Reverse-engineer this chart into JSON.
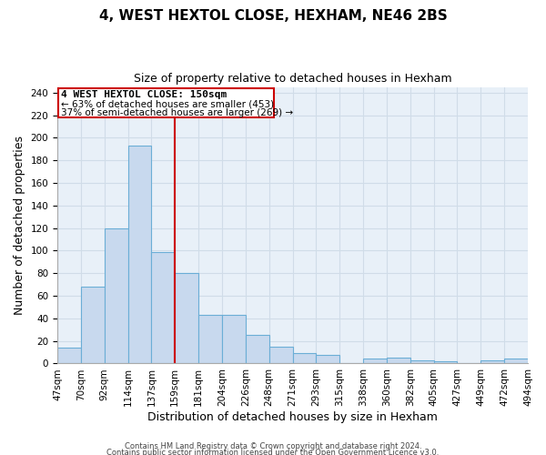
{
  "title": "4, WEST HEXTOL CLOSE, HEXHAM, NE46 2BS",
  "subtitle": "Size of property relative to detached houses in Hexham",
  "xlabel": "Distribution of detached houses by size in Hexham",
  "ylabel": "Number of detached properties",
  "bar_labels": [
    "47sqm",
    "70sqm",
    "92sqm",
    "114sqm",
    "137sqm",
    "159sqm",
    "181sqm",
    "204sqm",
    "226sqm",
    "248sqm",
    "271sqm",
    "293sqm",
    "315sqm",
    "338sqm",
    "360sqm",
    "382sqm",
    "405sqm",
    "427sqm",
    "449sqm",
    "472sqm",
    "494sqm"
  ],
  "bar_heights": [
    14,
    68,
    120,
    193,
    99,
    80,
    43,
    43,
    25,
    15,
    9,
    8,
    0,
    4,
    5,
    3,
    2,
    0,
    3,
    4
  ],
  "bar_color": "#c8d9ee",
  "bar_edge_color": "#6baed6",
  "vline_color": "#cc0000",
  "ylim": [
    0,
    245
  ],
  "yticks": [
    0,
    20,
    40,
    60,
    80,
    100,
    120,
    140,
    160,
    180,
    200,
    220,
    240
  ],
  "annotation_title": "4 WEST HEXTOL CLOSE: 150sqm",
  "annotation_line1": "← 63% of detached houses are smaller (453)",
  "annotation_line2": "37% of semi-detached houses are larger (269) →",
  "footer1": "Contains HM Land Registry data © Crown copyright and database right 2024.",
  "footer2": "Contains public sector information licensed under the Open Government Licence v3.0.",
  "title_fontsize": 11,
  "subtitle_fontsize": 9,
  "axis_label_fontsize": 9,
  "tick_fontsize": 7.5,
  "grid_color": "#d0dce8",
  "grid_bg": "#e8f0f8",
  "vline_x_idx": 4
}
